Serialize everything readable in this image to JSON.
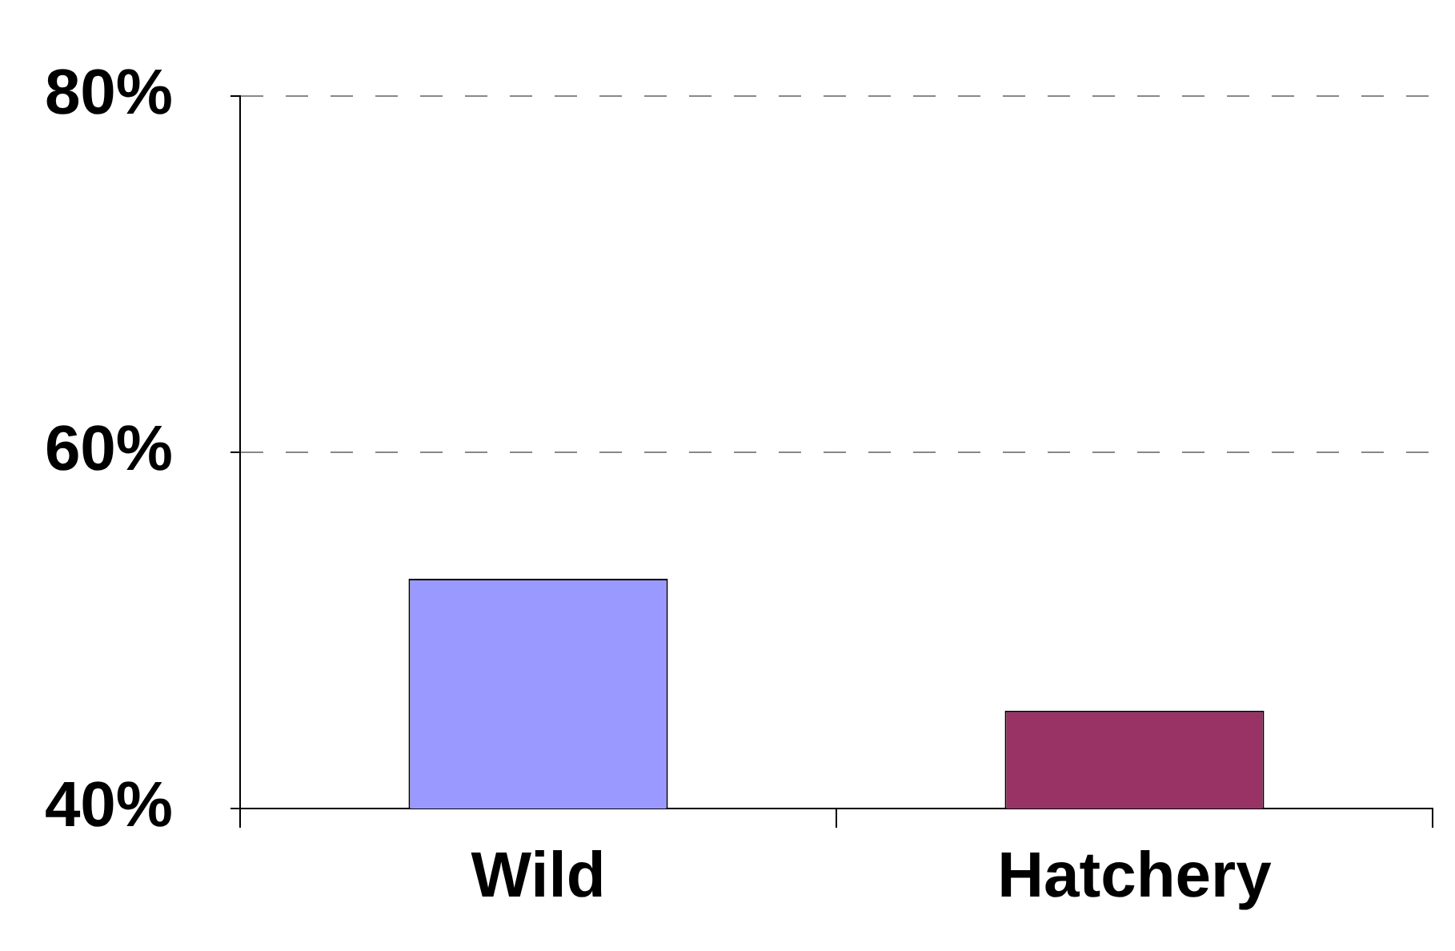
{
  "chart_data": {
    "type": "bar",
    "categories": [
      "Wild",
      "Hatchery"
    ],
    "values": [
      52.9,
      45.5
    ],
    "colors": [
      "#9999ff",
      "#993366"
    ],
    "ylim": [
      40,
      80
    ],
    "yticks": [
      {
        "value": 40,
        "label": "40%"
      },
      {
        "value": 60,
        "label": "60%"
      },
      {
        "value": 80,
        "label": "80%"
      }
    ],
    "grid": "y",
    "legend": false
  }
}
